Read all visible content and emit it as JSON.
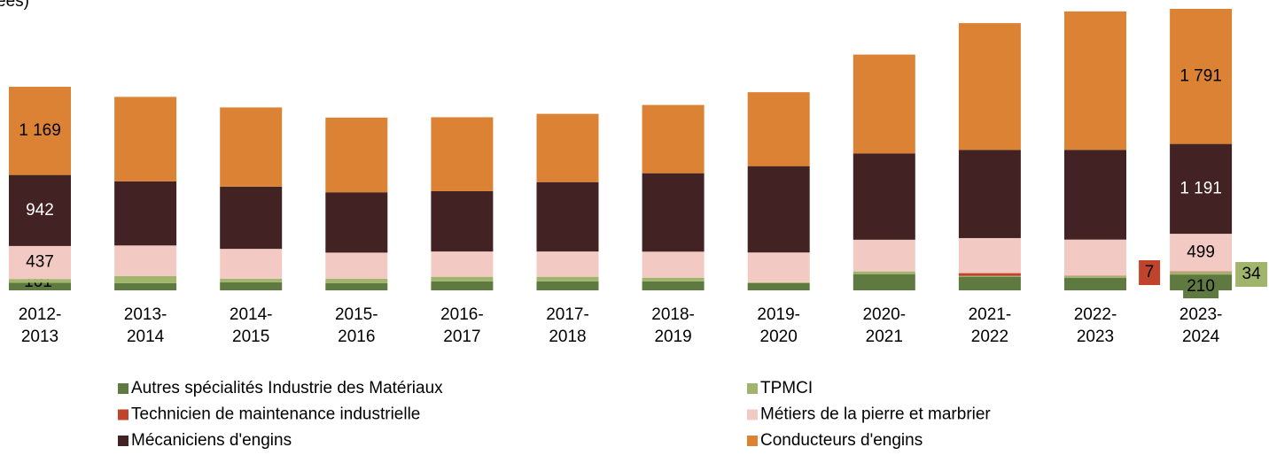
{
  "chart_data": {
    "type": "stacked-bar",
    "subtitle": "ées)",
    "categories": [
      "2012-2013",
      "2013-2014",
      "2014-2015",
      "2015-2016",
      "2016-2017",
      "2017-2018",
      "2018-2019",
      "2019-2020",
      "2020-2021",
      "2021-2022",
      "2022-2023",
      "2023-2024"
    ],
    "series": [
      {
        "name": "Autres spécialités Industrie des Matériaux",
        "color": "#5e7a40",
        "values": [
          101,
          95,
          107,
          95,
          120,
          120,
          120,
          95,
          215,
          180,
          167,
          210
        ],
        "value_labels": [
          "101",
          null,
          null,
          null,
          null,
          null,
          null,
          null,
          null,
          null,
          null,
          "210"
        ]
      },
      {
        "name": "TPMCI",
        "color": "#a1b46c",
        "values": [
          50,
          95,
          48,
          60,
          60,
          60,
          48,
          12,
          36,
          12,
          24,
          34
        ],
        "value_labels": [
          null,
          null,
          null,
          null,
          null,
          null,
          null,
          null,
          null,
          null,
          null,
          "34"
        ]
      },
      {
        "name": "Technicien de maintenance industrielle",
        "color": "#c0432b",
        "values": [
          0,
          0,
          0,
          0,
          0,
          0,
          0,
          0,
          0,
          36,
          5,
          7
        ],
        "value_labels": [
          null,
          null,
          null,
          null,
          null,
          null,
          null,
          null,
          null,
          null,
          null,
          "7"
        ]
      },
      {
        "name": "Métiers de la pierre et marbrier",
        "color": "#f3cac3",
        "values": [
          437,
          405,
          395,
          345,
          335,
          335,
          345,
          395,
          420,
          465,
          477,
          499
        ],
        "value_labels": [
          "437",
          null,
          null,
          null,
          null,
          null,
          null,
          null,
          null,
          null,
          null,
          "499"
        ]
      },
      {
        "name": "Mécaniciens d'engins",
        "color": "#422222",
        "values": [
          942,
          850,
          825,
          800,
          800,
          920,
          1040,
          1145,
          1145,
          1170,
          1190,
          1191
        ],
        "value_labels": [
          "942",
          null,
          null,
          null,
          null,
          null,
          null,
          null,
          null,
          null,
          null,
          "1 191"
        ]
      },
      {
        "name": "Conducteurs d'engins",
        "color": "#dc8234",
        "values": [
          1169,
          1120,
          1050,
          990,
          980,
          905,
          905,
          980,
          1310,
          1680,
          1835,
          1791
        ],
        "value_labels": [
          "1 169",
          null,
          null,
          null,
          null,
          null,
          null,
          null,
          null,
          null,
          null,
          "1 791"
        ]
      }
    ]
  }
}
